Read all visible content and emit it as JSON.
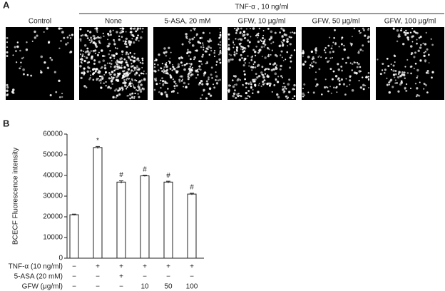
{
  "panel_a": {
    "label": "A",
    "group_label": "TNF-α , 10 ng/ml",
    "columns": [
      "Control",
      "None",
      "5-ASA, 20 mM",
      "GFW, 10 μg/ml",
      "GFW, 50 μg/ml",
      "GFW, 100 μg/ml"
    ]
  },
  "panel_b_label": "B",
  "chart_data": {
    "type": "bar",
    "y_label": "BCECF Fluorescence intensity",
    "values": [
      21000,
      53500,
      36800,
      39800,
      36800,
      31000
    ],
    "errors": [
      300,
      500,
      600,
      300,
      400,
      400
    ],
    "annotations": [
      null,
      "*",
      "#",
      "#",
      "#",
      "#"
    ],
    "color": "#ffffff",
    "ylim": [
      0,
      60000
    ],
    "yticks": [
      0,
      10000,
      20000,
      30000,
      40000,
      50000,
      60000
    ],
    "treatments": [
      {
        "label": "TNF-α (10 ng/ml)",
        "values": [
          "−",
          "+",
          "+",
          "+",
          "+",
          "+"
        ]
      },
      {
        "label": "5-ASA (20 mM)",
        "values": [
          "−",
          "−",
          "+",
          "−",
          "−",
          "−"
        ]
      },
      {
        "label": "GFW (μg/ml)",
        "values": [
          "−",
          "−",
          "−",
          "10",
          "50",
          "100"
        ]
      }
    ]
  }
}
